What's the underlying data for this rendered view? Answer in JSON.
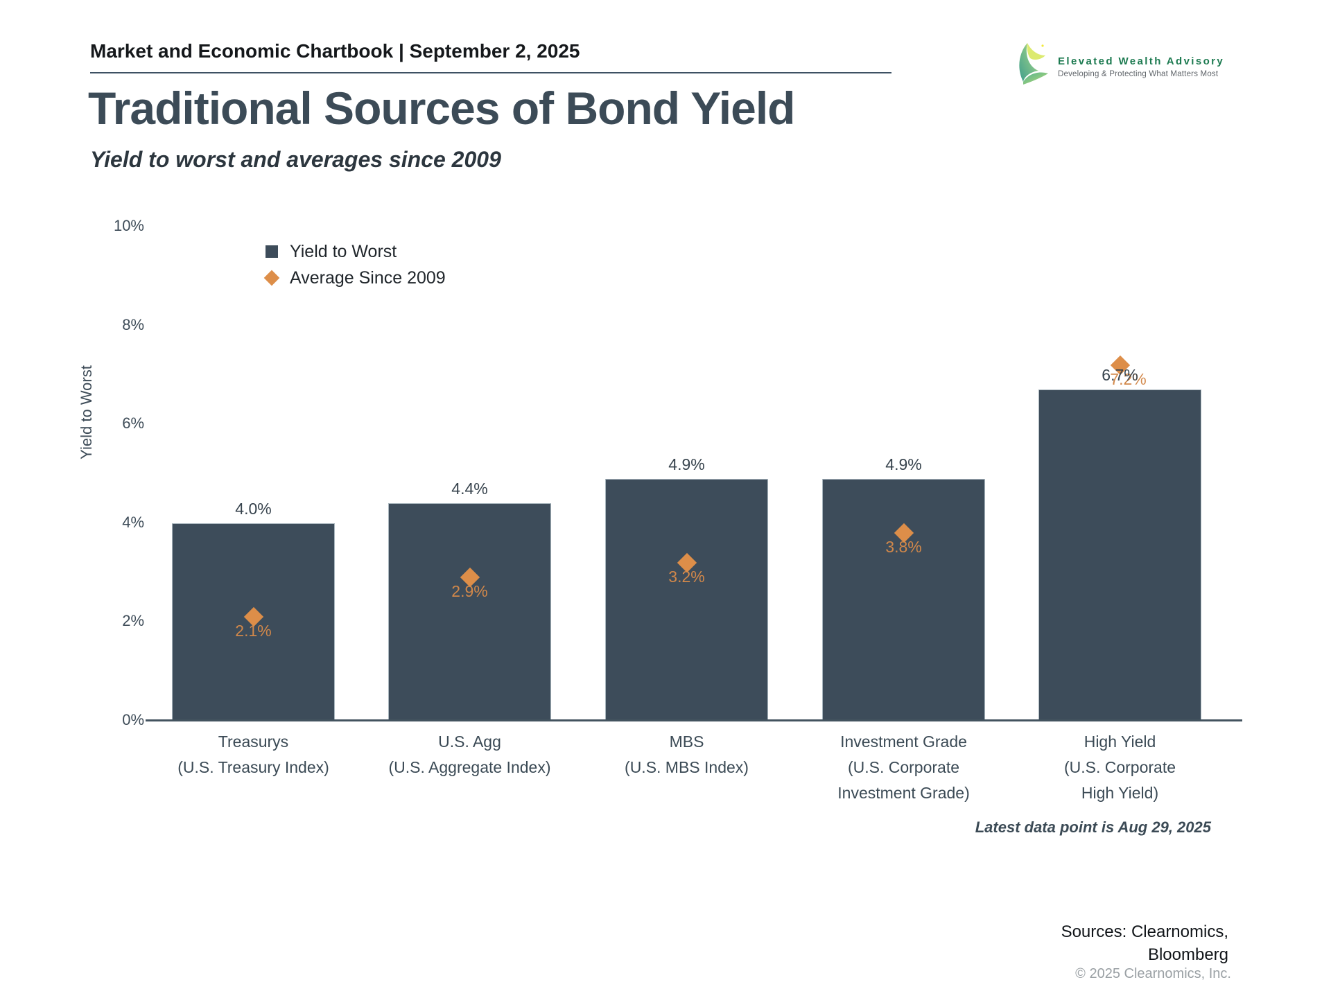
{
  "header": {
    "chartbook_title": "Market and Economic Chartbook | September 2, 2025",
    "logo": {
      "name": "Elevated Wealth Advisory",
      "tagline": "Developing & Protecting What Matters Most",
      "brand_green": "#1c7a50"
    }
  },
  "title": "Traditional Sources of Bond Yield",
  "subtitle": "Yield to worst and averages since 2009",
  "chart_data": {
    "type": "bar",
    "title": "Traditional Sources of Bond Yield",
    "xlabel": "",
    "ylabel": "Yield to Worst",
    "ylim": [
      0,
      10
    ],
    "y_ticks": [
      "0%",
      "2%",
      "4%",
      "6%",
      "8%",
      "10%"
    ],
    "grid": false,
    "legend_position": "upper-left-inside",
    "bar_color": "#3d4c5a",
    "marker_color": "#dd8e49",
    "categories": [
      {
        "lines": [
          "Treasurys",
          "(U.S. Treasury Index)"
        ]
      },
      {
        "lines": [
          "U.S. Agg",
          "(U.S. Aggregate Index)"
        ]
      },
      {
        "lines": [
          "MBS",
          "(U.S. MBS Index)"
        ]
      },
      {
        "lines": [
          "Investment Grade",
          "(U.S. Corporate",
          "Investment Grade)"
        ]
      },
      {
        "lines": [
          "High Yield",
          "(U.S. Corporate",
          "High Yield)"
        ]
      }
    ],
    "series": [
      {
        "name": "Yield to Worst",
        "marker": "square",
        "values": [
          4.0,
          4.4,
          4.9,
          4.9,
          6.7
        ],
        "labels": [
          "4.0%",
          "4.4%",
          "4.9%",
          "4.9%",
          "6.7%"
        ]
      },
      {
        "name": "Average Since 2009",
        "marker": "diamond",
        "values": [
          2.1,
          2.9,
          3.2,
          3.8,
          7.2
        ],
        "labels": [
          "2.1%",
          "2.9%",
          "3.2%",
          "3.8%",
          "7.2%"
        ]
      }
    ],
    "note": "Latest data point is Aug 29, 2025"
  },
  "footer": {
    "sources_line1": "Sources: Clearnomics,",
    "sources_line2": "Bloomberg",
    "copyright": "© 2025 Clearnomics, Inc."
  }
}
